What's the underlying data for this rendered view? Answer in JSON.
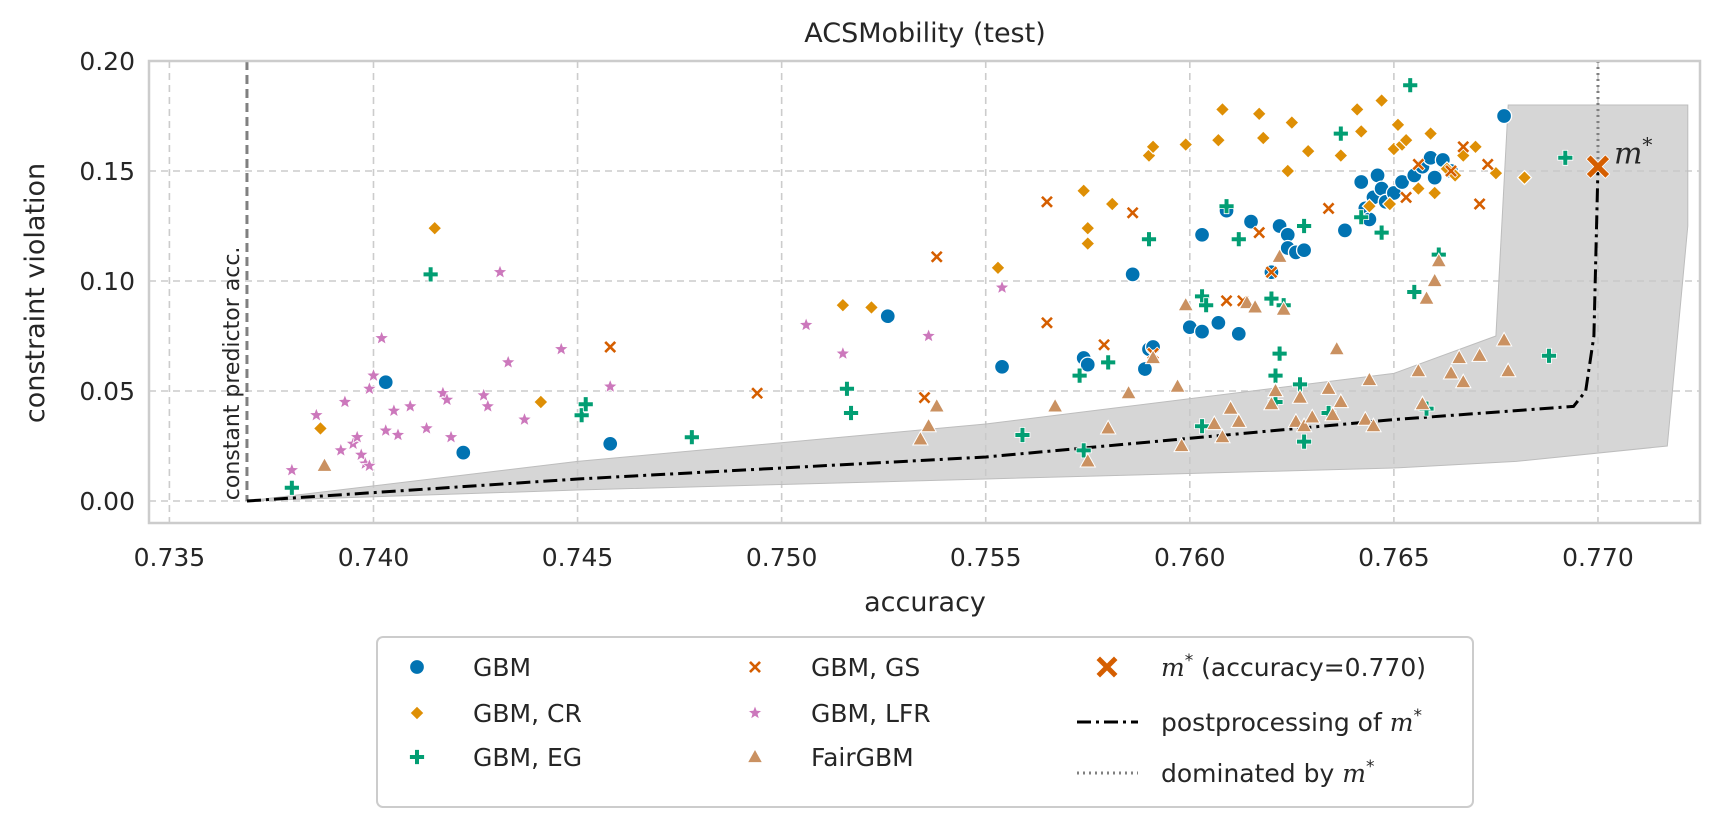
{
  "chart_data": {
    "type": "scatter",
    "title": "ACSMobility (test)",
    "xlabel": "accuracy",
    "ylabel": "constraint violation",
    "xlim": [
      0.7345,
      0.7725
    ],
    "ylim": [
      -0.01,
      0.2
    ],
    "xticks": [
      0.735,
      0.74,
      0.745,
      0.75,
      0.755,
      0.76,
      0.765,
      0.77
    ],
    "xtick_labels": [
      "0.735",
      "0.740",
      "0.745",
      "0.750",
      "0.755",
      "0.760",
      "0.765",
      "0.770"
    ],
    "yticks": [
      0.0,
      0.05,
      0.1,
      0.15,
      0.2
    ],
    "ytick_labels": [
      "0.00",
      "0.05",
      "0.10",
      "0.15",
      "0.20"
    ],
    "grid": true,
    "legend_position": "bottom-center",
    "constant_predictor": {
      "x": 0.7369,
      "label": "constant predictor acc."
    },
    "m_star": {
      "x": 0.77,
      "y": 0.152,
      "label": "m*",
      "legend": "m* (accuracy=0.770)",
      "color": "#d55e00"
    },
    "postprocessing_line": {
      "legend": "postprocessing of m*",
      "color": "#000000",
      "x": [
        0.7369,
        0.745,
        0.755,
        0.765,
        0.7694,
        0.7697,
        0.7699,
        0.77
      ],
      "y": [
        0.0,
        0.01,
        0.02,
        0.037,
        0.043,
        0.05,
        0.075,
        0.152
      ]
    },
    "dominated_line": {
      "legend": "dominated by m*",
      "x": 0.77,
      "y_from": 0.152,
      "y_to": 0.2,
      "color": "#808080"
    },
    "band": {
      "color": "#c8c8c8",
      "upper": [
        [
          0.7369,
          0.0
        ],
        [
          0.745,
          0.018
        ],
        [
          0.755,
          0.035
        ],
        [
          0.765,
          0.058
        ],
        [
          0.7675,
          0.075
        ],
        [
          0.7678,
          0.18
        ],
        [
          0.7722,
          0.18
        ],
        [
          0.7722,
          0.125
        ],
        [
          0.7717,
          0.025
        ]
      ],
      "lower": [
        [
          0.768,
          0.018
        ],
        [
          0.765,
          0.015
        ],
        [
          0.755,
          0.01
        ],
        [
          0.745,
          0.005
        ],
        [
          0.7369,
          0.0
        ]
      ]
    },
    "series": [
      {
        "name": "GBM",
        "marker": "circle",
        "color": "#0173b2",
        "x": [
          0.7403,
          0.7422,
          0.7458,
          0.7526,
          0.7554,
          0.7574,
          0.7575,
          0.7586,
          0.7589,
          0.759,
          0.7591,
          0.76,
          0.7603,
          0.7603,
          0.7607,
          0.7609,
          0.7612,
          0.7615,
          0.762,
          0.7622,
          0.7624,
          0.7624,
          0.7626,
          0.7628,
          0.7638,
          0.7642,
          0.7643,
          0.7644,
          0.7645,
          0.7646,
          0.7647,
          0.7648,
          0.765,
          0.7652,
          0.7655,
          0.7657,
          0.7659,
          0.766,
          0.7662,
          0.7664,
          0.7677
        ],
        "y": [
          0.054,
          0.022,
          0.026,
          0.084,
          0.061,
          0.065,
          0.062,
          0.103,
          0.06,
          0.069,
          0.07,
          0.079,
          0.077,
          0.121,
          0.081,
          0.132,
          0.076,
          0.127,
          0.104,
          0.125,
          0.121,
          0.115,
          0.113,
          0.114,
          0.123,
          0.145,
          0.133,
          0.128,
          0.138,
          0.148,
          0.142,
          0.136,
          0.14,
          0.145,
          0.148,
          0.152,
          0.156,
          0.147,
          0.155,
          0.15,
          0.175
        ]
      },
      {
        "name": "GBM, CR",
        "marker": "diamond",
        "color": "#de8f05",
        "x": [
          0.7387,
          0.7415,
          0.7441,
          0.7515,
          0.7522,
          0.7553,
          0.7574,
          0.7575,
          0.7575,
          0.7581,
          0.759,
          0.7591,
          0.7599,
          0.7607,
          0.7608,
          0.7617,
          0.7618,
          0.7624,
          0.7625,
          0.7629,
          0.7637,
          0.7641,
          0.7642,
          0.7644,
          0.7647,
          0.7649,
          0.765,
          0.7651,
          0.7652,
          0.7653,
          0.7656,
          0.7659,
          0.766,
          0.7663,
          0.7665,
          0.7667,
          0.767,
          0.7675,
          0.7682
        ],
        "y": [
          0.033,
          0.124,
          0.045,
          0.089,
          0.088,
          0.106,
          0.141,
          0.124,
          0.117,
          0.135,
          0.157,
          0.161,
          0.162,
          0.164,
          0.178,
          0.176,
          0.165,
          0.15,
          0.172,
          0.159,
          0.157,
          0.178,
          0.168,
          0.134,
          0.182,
          0.135,
          0.16,
          0.171,
          0.162,
          0.164,
          0.142,
          0.167,
          0.14,
          0.151,
          0.148,
          0.157,
          0.161,
          0.149,
          0.147
        ]
      },
      {
        "name": "GBM, EG",
        "marker": "plus",
        "color": "#029e73",
        "x": [
          0.738,
          0.7414,
          0.7451,
          0.7452,
          0.7478,
          0.7516,
          0.7517,
          0.7559,
          0.7573,
          0.7574,
          0.758,
          0.759,
          0.7603,
          0.7603,
          0.7604,
          0.7609,
          0.7612,
          0.762,
          0.7621,
          0.7621,
          0.7622,
          0.7623,
          0.7627,
          0.7628,
          0.7628,
          0.7634,
          0.7637,
          0.7642,
          0.7647,
          0.7654,
          0.7655,
          0.7658,
          0.7661,
          0.7688,
          0.7692
        ],
        "y": [
          0.006,
          0.103,
          0.039,
          0.044,
          0.029,
          0.051,
          0.04,
          0.03,
          0.057,
          0.023,
          0.063,
          0.119,
          0.034,
          0.093,
          0.089,
          0.134,
          0.119,
          0.092,
          0.057,
          0.045,
          0.067,
          0.089,
          0.053,
          0.125,
          0.027,
          0.04,
          0.167,
          0.129,
          0.122,
          0.189,
          0.095,
          0.042,
          0.112,
          0.066,
          0.156
        ]
      },
      {
        "name": "GBM, GS",
        "marker": "x",
        "color": "#d55e00",
        "x": [
          0.7458,
          0.7494,
          0.7535,
          0.7538,
          0.7565,
          0.7565,
          0.7579,
          0.7586,
          0.7591,
          0.7609,
          0.7613,
          0.7617,
          0.762,
          0.7634,
          0.7653,
          0.7656,
          0.7664,
          0.7667,
          0.7671,
          0.7673
        ],
        "y": [
          0.07,
          0.049,
          0.047,
          0.111,
          0.136,
          0.081,
          0.071,
          0.131,
          0.067,
          0.091,
          0.091,
          0.122,
          0.104,
          0.133,
          0.138,
          0.153,
          0.15,
          0.161,
          0.135,
          0.153
        ]
      },
      {
        "name": "GBM, LFR",
        "marker": "star",
        "color": "#cc78bc",
        "x": [
          0.738,
          0.7386,
          0.7392,
          0.7393,
          0.7395,
          0.7396,
          0.7397,
          0.7398,
          0.7399,
          0.7399,
          0.74,
          0.7402,
          0.7403,
          0.7405,
          0.7406,
          0.7409,
          0.7413,
          0.7417,
          0.7418,
          0.7419,
          0.7427,
          0.7428,
          0.7431,
          0.7433,
          0.7437,
          0.7446,
          0.7458,
          0.7506,
          0.7515,
          0.7536,
          0.7554
        ],
        "y": [
          0.014,
          0.039,
          0.023,
          0.045,
          0.026,
          0.029,
          0.021,
          0.017,
          0.051,
          0.016,
          0.057,
          0.074,
          0.032,
          0.041,
          0.03,
          0.043,
          0.033,
          0.049,
          0.046,
          0.029,
          0.048,
          0.043,
          0.104,
          0.063,
          0.037,
          0.069,
          0.052,
          0.08,
          0.067,
          0.075,
          0.097
        ]
      },
      {
        "name": "FairGBM",
        "marker": "triangle",
        "color": "#ca9161",
        "x": [
          0.7388,
          0.7534,
          0.7536,
          0.7538,
          0.7567,
          0.7575,
          0.758,
          0.7585,
          0.7591,
          0.7597,
          0.7598,
          0.7599,
          0.7606,
          0.7608,
          0.761,
          0.7612,
          0.7614,
          0.7616,
          0.762,
          0.7621,
          0.7622,
          0.7623,
          0.7626,
          0.7627,
          0.7628,
          0.763,
          0.7634,
          0.7635,
          0.7636,
          0.7637,
          0.7643,
          0.7644,
          0.7645,
          0.7656,
          0.7657,
          0.7658,
          0.766,
          0.7661,
          0.7664,
          0.7666,
          0.7667,
          0.7671,
          0.7677,
          0.7678
        ],
        "y": [
          0.016,
          0.028,
          0.034,
          0.043,
          0.043,
          0.018,
          0.033,
          0.049,
          0.065,
          0.052,
          0.025,
          0.089,
          0.035,
          0.029,
          0.042,
          0.036,
          0.09,
          0.088,
          0.044,
          0.05,
          0.111,
          0.087,
          0.036,
          0.047,
          0.034,
          0.038,
          0.051,
          0.039,
          0.069,
          0.045,
          0.037,
          0.055,
          0.034,
          0.059,
          0.044,
          0.092,
          0.1,
          0.109,
          0.058,
          0.065,
          0.054,
          0.066,
          0.073,
          0.059
        ]
      }
    ]
  }
}
